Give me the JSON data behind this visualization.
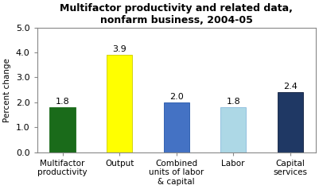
{
  "title": "Multifactor productivity and related data,\nnonfarm business, 2004-05",
  "categories": [
    "Multifactor\nproductivity",
    "Output",
    "Combined\nunits of labor\n& capital",
    "Labor",
    "Capital\nservices"
  ],
  "values": [
    1.8,
    3.9,
    2.0,
    1.8,
    2.4
  ],
  "bar_colors": [
    "#1a6b1a",
    "#ffff00",
    "#4472c4",
    "#add8e6",
    "#1f3864"
  ],
  "bar_edgecolors": [
    "#1a6b1a",
    "#cccc00",
    "#2255aa",
    "#88bbdd",
    "#0f1e3c"
  ],
  "ylabel": "Percent change",
  "ylim": [
    0.0,
    5.0
  ],
  "yticks": [
    0.0,
    1.0,
    2.0,
    3.0,
    4.0,
    5.0
  ],
  "title_fontsize": 9,
  "label_fontsize": 7.5,
  "tick_fontsize": 8,
  "value_fontsize": 8,
  "background_color": "#ffffff",
  "plot_bg_color": "#ffffff"
}
